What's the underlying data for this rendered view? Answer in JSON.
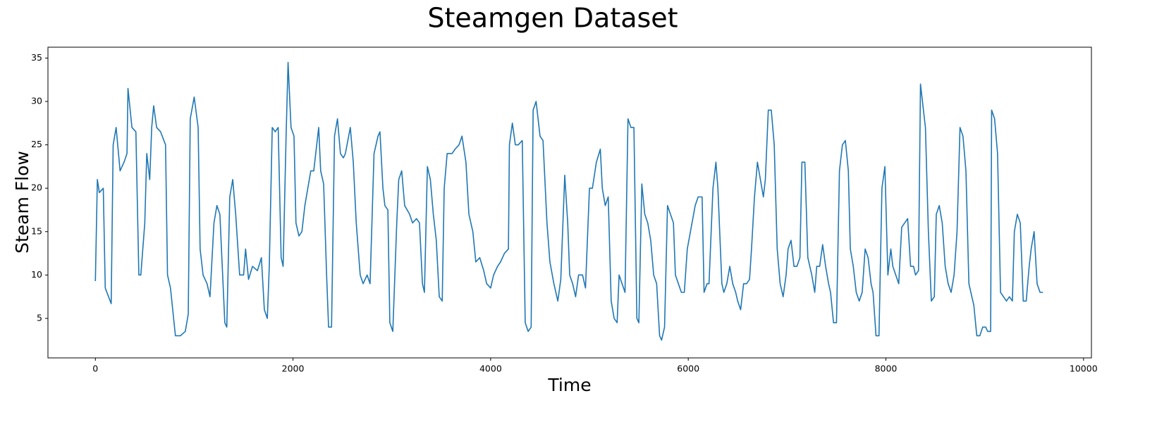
{
  "chart_data": {
    "type": "line",
    "title": "Steamgen Dataset",
    "x_label": "Time",
    "y_label": "Steam Flow",
    "x": [
      0,
      20,
      40,
      80,
      100,
      160,
      180,
      210,
      250,
      290,
      320,
      330,
      370,
      410,
      440,
      460,
      500,
      520,
      550,
      570,
      590,
      620,
      660,
      710,
      730,
      760,
      810,
      860,
      910,
      940,
      960,
      1000,
      1040,
      1060,
      1090,
      1130,
      1160,
      1200,
      1230,
      1260,
      1310,
      1330,
      1360,
      1390,
      1420,
      1460,
      1500,
      1520,
      1550,
      1590,
      1640,
      1680,
      1710,
      1740,
      1760,
      1790,
      1820,
      1850,
      1880,
      1900,
      1930,
      1950,
      1980,
      2010,
      2030,
      2060,
      2090,
      2120,
      2150,
      2180,
      2210,
      2230,
      2260,
      2280,
      2310,
      2340,
      2360,
      2390,
      2420,
      2450,
      2480,
      2510,
      2530,
      2580,
      2610,
      2640,
      2680,
      2710,
      2750,
      2780,
      2820,
      2860,
      2880,
      2910,
      2930,
      2960,
      2980,
      3010,
      3050,
      3070,
      3100,
      3130,
      3180,
      3210,
      3250,
      3280,
      3310,
      3330,
      3360,
      3390,
      3420,
      3450,
      3480,
      3510,
      3530,
      3560,
      3610,
      3640,
      3680,
      3710,
      3750,
      3780,
      3820,
      3850,
      3890,
      3930,
      3960,
      4000,
      4030,
      4070,
      4100,
      4140,
      4180,
      4190,
      4220,
      4250,
      4280,
      4320,
      4350,
      4380,
      4410,
      4430,
      4460,
      4500,
      4530,
      4570,
      4600,
      4640,
      4680,
      4710,
      4750,
      4780,
      4800,
      4830,
      4860,
      4890,
      4930,
      4960,
      5000,
      5030,
      5070,
      5110,
      5130,
      5160,
      5190,
      5220,
      5250,
      5280,
      5300,
      5330,
      5360,
      5390,
      5420,
      5450,
      5480,
      5500,
      5530,
      5560,
      5590,
      5620,
      5650,
      5680,
      5710,
      5730,
      5760,
      5790,
      5820,
      5850,
      5870,
      5900,
      5930,
      5960,
      5990,
      6030,
      6070,
      6100,
      6140,
      6160,
      6190,
      6210,
      6250,
      6280,
      6300,
      6340,
      6360,
      6390,
      6420,
      6450,
      6480,
      6500,
      6530,
      6560,
      6590,
      6620,
      6640,
      6670,
      6700,
      6730,
      6760,
      6780,
      6810,
      6840,
      6870,
      6900,
      6930,
      6960,
      6990,
      7010,
      7040,
      7070,
      7100,
      7130,
      7150,
      7180,
      7210,
      7250,
      7280,
      7300,
      7330,
      7360,
      7390,
      7420,
      7440,
      7470,
      7500,
      7530,
      7560,
      7590,
      7620,
      7640,
      7670,
      7700,
      7730,
      7760,
      7790,
      7820,
      7850,
      7870,
      7900,
      7930,
      7960,
      7990,
      8020,
      8050,
      8070,
      8100,
      8130,
      8160,
      8190,
      8220,
      8250,
      8280,
      8300,
      8330,
      8350,
      8370,
      8400,
      8430,
      8460,
      8490,
      8510,
      8540,
      8570,
      8600,
      8630,
      8660,
      8690,
      8720,
      8750,
      8780,
      8810,
      8840,
      8870,
      8890,
      8920,
      8950,
      8980,
      9010,
      9030,
      9060,
      9070,
      9100,
      9130,
      9160,
      9190,
      9220,
      9250,
      9280,
      9300,
      9330,
      9360,
      9390,
      9420,
      9450,
      9470,
      9500,
      9530,
      9560,
      9590
    ],
    "series": [
      {
        "color": "#1f77b4",
        "values": [
          9.3,
          21,
          19.5,
          20,
          8.5,
          6.7,
          25,
          27,
          22,
          23,
          24,
          31.5,
          27,
          26.5,
          10,
          10,
          16,
          24,
          21,
          27,
          29.5,
          27,
          26.5,
          25,
          10,
          8.5,
          3,
          3,
          3.5,
          5.5,
          28,
          30.5,
          27,
          13,
          10,
          9,
          7.5,
          16,
          18,
          17,
          4.5,
          4,
          19,
          21,
          17,
          10,
          10,
          13,
          9.5,
          11,
          10.5,
          12,
          6,
          5,
          11,
          27,
          26.5,
          27,
          12,
          11,
          26,
          34.5,
          27,
          26,
          16,
          14.5,
          15,
          18,
          20,
          22,
          22,
          24,
          27,
          22,
          20.5,
          10,
          4,
          4,
          26,
          28,
          24,
          23.5,
          24,
          27,
          23,
          16,
          10,
          9,
          10,
          9,
          24,
          26,
          26.5,
          20,
          18,
          17.5,
          4.5,
          3.5,
          16,
          21,
          22,
          18,
          17,
          16,
          16.5,
          16,
          9,
          8,
          22.5,
          21,
          17,
          14,
          7.5,
          7,
          20,
          24,
          24,
          24.5,
          25,
          26,
          23,
          17,
          15,
          11.5,
          12,
          10.5,
          9,
          8.5,
          10,
          11,
          11.5,
          12.5,
          13,
          25,
          27.5,
          25,
          25,
          25.5,
          4.5,
          3.5,
          4,
          29,
          30,
          26,
          25.5,
          16,
          11.5,
          9,
          7,
          9.5,
          21.5,
          16,
          10,
          9,
          7.5,
          10,
          10,
          8.5,
          20,
          20,
          23,
          24.5,
          20,
          18,
          19,
          7,
          5,
          4.5,
          10,
          9,
          8,
          28,
          27,
          27,
          5,
          4.5,
          20.5,
          17,
          16,
          14,
          10,
          9,
          3,
          2.5,
          4,
          18,
          17,
          16,
          10,
          9,
          8,
          8,
          13,
          15.5,
          18,
          19,
          19,
          8,
          9,
          9,
          20,
          23,
          20,
          9,
          8,
          9,
          11,
          9,
          8,
          7,
          6,
          9,
          9,
          9.5,
          13,
          19,
          23,
          21,
          19,
          21,
          29,
          29,
          25,
          13,
          9,
          7.5,
          10,
          13,
          14,
          11,
          11,
          12,
          23,
          23,
          12,
          10,
          8,
          11,
          11,
          13.5,
          11,
          9,
          8,
          4.5,
          4.5,
          22,
          25,
          25.5,
          22,
          13,
          11,
          8,
          7,
          8,
          13,
          12,
          9,
          8,
          3,
          3,
          20,
          22.5,
          10,
          13,
          11,
          10,
          9,
          15.5,
          16,
          16.5,
          11,
          11,
          10,
          10.5,
          32,
          30,
          27,
          15,
          7,
          7.5,
          17,
          18,
          16,
          11,
          9,
          8,
          10,
          15,
          27,
          26,
          22,
          9,
          7.5,
          6.5,
          3,
          3,
          4,
          4,
          3.5,
          3.5,
          29,
          28,
          24,
          8,
          7.5,
          7,
          7.5,
          7,
          15,
          17,
          16,
          7,
          7,
          11,
          13,
          15,
          9,
          8,
          8
        ]
      }
    ],
    "xlim": [
      -480,
      10080
    ],
    "xticks": [
      0,
      2000,
      4000,
      6000,
      8000,
      10000
    ],
    "ylim": [
      0.45,
      36.25
    ],
    "yticks": [
      5,
      10,
      15,
      20,
      25,
      30,
      35
    ],
    "grid": false
  }
}
